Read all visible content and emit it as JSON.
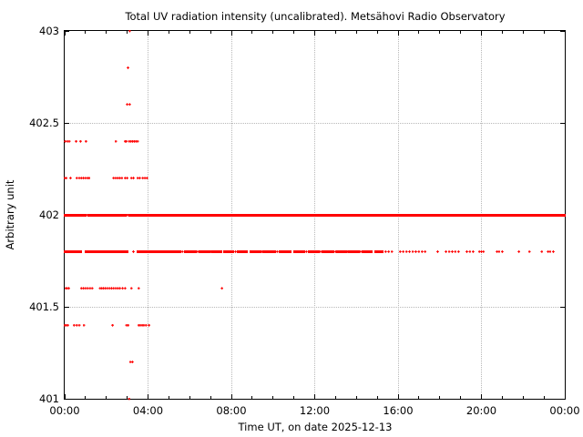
{
  "chart_data": {
    "type": "scatter",
    "title": "Total UV radiation intensity (uncalibrated). Metsähovi Radio Observatory",
    "xlabel": "Time UT, on date 2025-12-13",
    "ylabel": "Arbitrary unit",
    "xlim": [
      0,
      24
    ],
    "ylim": [
      401,
      403
    ],
    "x_major_ticks": [
      {
        "t": 0,
        "label": "00:00"
      },
      {
        "t": 4,
        "label": "04:00"
      },
      {
        "t": 8,
        "label": "08:00"
      },
      {
        "t": 12,
        "label": "12:00"
      },
      {
        "t": 16,
        "label": "16:00"
      },
      {
        "t": 20,
        "label": "20:00"
      },
      {
        "t": 24,
        "label": "00:00"
      }
    ],
    "x_minor_step_hours": 1,
    "y_major_ticks": [
      {
        "v": 401,
        "label": "401"
      },
      {
        "v": 401.5,
        "label": "401.5"
      },
      {
        "v": 402,
        "label": "402"
      },
      {
        "v": 402.5,
        "label": "402.5"
      },
      {
        "v": 403,
        "label": "403"
      }
    ],
    "grid": {
      "vertical_at_hours": [
        4,
        8,
        12,
        16,
        20
      ],
      "horizontal_at_values": [
        401.5,
        402,
        402.5
      ],
      "style": "dotted",
      "color": "#b8b8b8"
    },
    "point_color": "#ff0000",
    "marker": "small-plus",
    "series": [
      {
        "value": 403.0,
        "points": [
          3.12
        ],
        "segments": []
      },
      {
        "value": 402.8,
        "points": [
          3.04
        ],
        "segments": []
      },
      {
        "value": 402.6,
        "points": [
          3.0,
          3.12
        ],
        "segments": []
      },
      {
        "value": 402.4,
        "points": [
          0.02,
          0.13,
          0.22,
          0.55,
          0.76,
          1.02,
          2.45,
          2.9,
          2.96,
          3.1,
          3.18,
          3.26,
          3.34,
          3.42,
          3.5
        ],
        "segments": []
      },
      {
        "value": 402.2,
        "points": [
          0.0,
          0.08,
          0.28,
          0.58,
          0.7,
          0.8,
          0.9,
          1.0,
          1.1,
          1.18,
          2.35,
          2.45,
          2.55,
          2.65,
          2.75,
          2.9,
          3.0,
          3.2,
          3.3,
          3.5,
          3.6,
          3.75,
          3.85,
          3.95
        ],
        "segments": []
      },
      {
        "value": 402.0,
        "points": [
          1.05,
          3.0,
          3.05
        ],
        "segments": [
          [
            0.0,
            1.0
          ],
          [
            1.13,
            2.93
          ],
          [
            3.1,
            24.0
          ]
        ]
      },
      {
        "value": 401.8,
        "points": [
          3.3,
          5.65,
          6.38,
          7.02,
          8.2,
          9.48,
          10.2,
          11.6,
          12.28,
          13.0,
          13.58,
          14.2,
          15.4,
          15.55,
          15.7,
          16.1,
          16.25,
          16.4,
          16.55,
          16.7,
          16.85,
          17.0,
          17.15,
          17.3,
          17.9,
          18.3,
          18.45,
          18.6,
          18.75,
          18.9,
          19.3,
          19.45,
          19.6,
          19.9,
          20.0,
          20.1,
          20.75,
          20.85,
          21.0,
          21.8,
          22.3,
          22.9,
          23.2,
          23.3,
          23.45
        ],
        "segments": [
          [
            0.0,
            0.8
          ],
          [
            1.0,
            2.35
          ],
          [
            2.4,
            3.0
          ],
          [
            3.5,
            5.55
          ],
          [
            5.75,
            6.3
          ],
          [
            6.45,
            6.95
          ],
          [
            7.1,
            7.5
          ],
          [
            7.65,
            8.1
          ],
          [
            8.3,
            8.75
          ],
          [
            8.9,
            9.4
          ],
          [
            9.55,
            10.1
          ],
          [
            10.3,
            10.85
          ],
          [
            11.0,
            11.5
          ],
          [
            11.7,
            12.2
          ],
          [
            12.35,
            12.9
          ],
          [
            13.05,
            13.5
          ],
          [
            13.65,
            14.1
          ],
          [
            14.3,
            14.75
          ],
          [
            14.9,
            15.25
          ]
        ]
      },
      {
        "value": 401.6,
        "points": [
          0.05,
          0.12,
          0.2,
          0.8,
          0.9,
          1.0,
          1.1,
          1.22,
          1.32,
          1.7,
          1.78,
          1.86,
          1.95,
          2.05,
          2.15,
          2.25,
          2.35,
          2.45,
          2.55,
          2.65,
          2.78,
          2.9,
          3.2,
          3.55,
          7.55
        ],
        "segments": []
      },
      {
        "value": 401.4,
        "points": [
          0.0,
          0.07,
          0.15,
          0.45,
          0.58,
          0.7,
          0.92,
          2.3,
          2.97,
          3.05,
          3.55,
          3.63,
          3.72,
          3.8,
          3.9,
          4.05
        ],
        "segments": []
      },
      {
        "value": 401.2,
        "points": [
          3.15,
          3.25
        ],
        "segments": []
      },
      {
        "value": 401.0,
        "points": [
          3.1
        ],
        "segments": []
      }
    ]
  }
}
